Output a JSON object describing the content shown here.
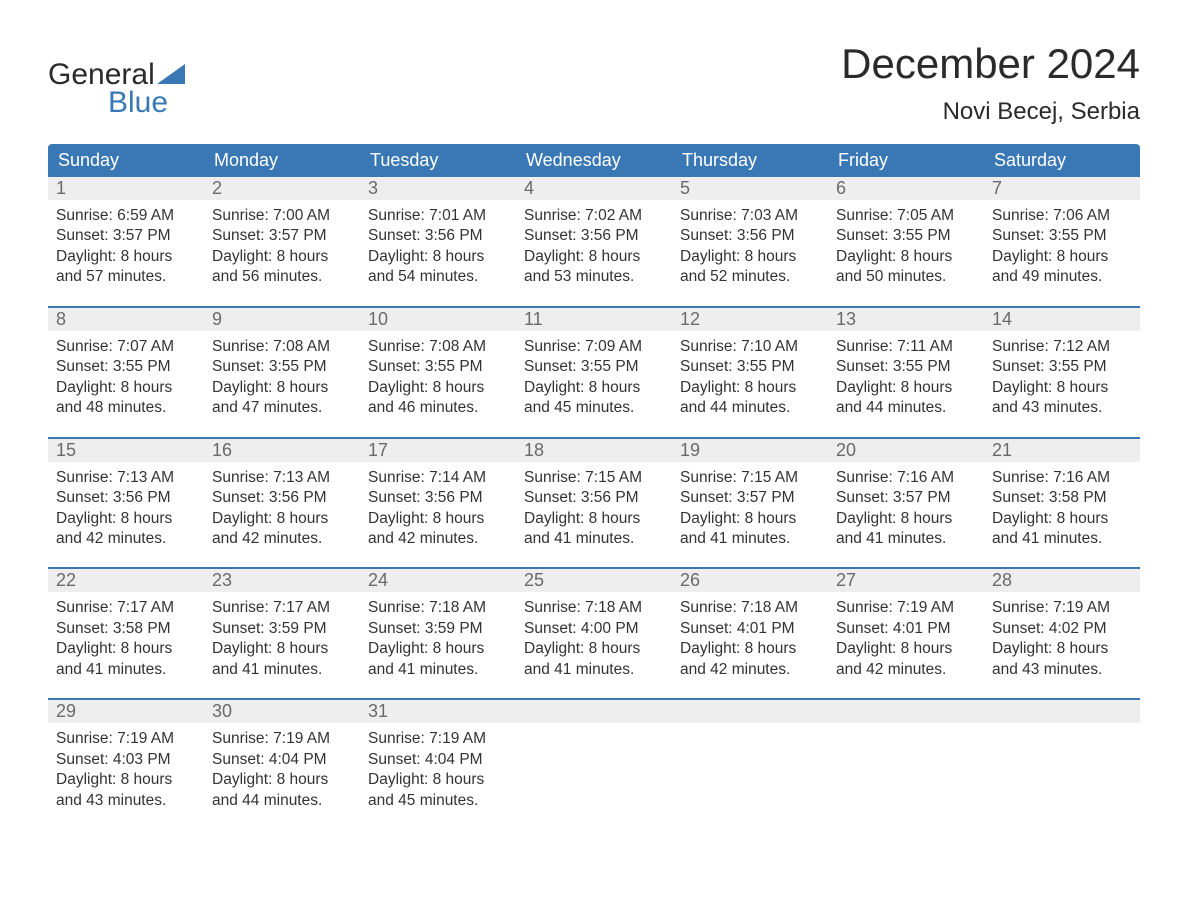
{
  "brand": {
    "word1": "General",
    "word2": "Blue"
  },
  "colors": {
    "blue": "#3a78b5",
    "header_text": "#ffffff",
    "daynum_bg": "#eeeeee",
    "daynum_text": "#6a6a6a",
    "body_text": "#333333",
    "page_bg": "#ffffff"
  },
  "title": "December 2024",
  "location": "Novi Becej, Serbia",
  "weekday_labels": [
    "Sunday",
    "Monday",
    "Tuesday",
    "Wednesday",
    "Thursday",
    "Friday",
    "Saturday"
  ],
  "labels": {
    "sunrise": "Sunrise:",
    "sunset": "Sunset:",
    "daylight": "Daylight:"
  },
  "weeks": [
    [
      {
        "n": "1",
        "sr": "6:59 AM",
        "ss": "3:57 PM",
        "dl": "8 hours and 57 minutes."
      },
      {
        "n": "2",
        "sr": "7:00 AM",
        "ss": "3:57 PM",
        "dl": "8 hours and 56 minutes."
      },
      {
        "n": "3",
        "sr": "7:01 AM",
        "ss": "3:56 PM",
        "dl": "8 hours and 54 minutes."
      },
      {
        "n": "4",
        "sr": "7:02 AM",
        "ss": "3:56 PM",
        "dl": "8 hours and 53 minutes."
      },
      {
        "n": "5",
        "sr": "7:03 AM",
        "ss": "3:56 PM",
        "dl": "8 hours and 52 minutes."
      },
      {
        "n": "6",
        "sr": "7:05 AM",
        "ss": "3:55 PM",
        "dl": "8 hours and 50 minutes."
      },
      {
        "n": "7",
        "sr": "7:06 AM",
        "ss": "3:55 PM",
        "dl": "8 hours and 49 minutes."
      }
    ],
    [
      {
        "n": "8",
        "sr": "7:07 AM",
        "ss": "3:55 PM",
        "dl": "8 hours and 48 minutes."
      },
      {
        "n": "9",
        "sr": "7:08 AM",
        "ss": "3:55 PM",
        "dl": "8 hours and 47 minutes."
      },
      {
        "n": "10",
        "sr": "7:08 AM",
        "ss": "3:55 PM",
        "dl": "8 hours and 46 minutes."
      },
      {
        "n": "11",
        "sr": "7:09 AM",
        "ss": "3:55 PM",
        "dl": "8 hours and 45 minutes."
      },
      {
        "n": "12",
        "sr": "7:10 AM",
        "ss": "3:55 PM",
        "dl": "8 hours and 44 minutes."
      },
      {
        "n": "13",
        "sr": "7:11 AM",
        "ss": "3:55 PM",
        "dl": "8 hours and 44 minutes."
      },
      {
        "n": "14",
        "sr": "7:12 AM",
        "ss": "3:55 PM",
        "dl": "8 hours and 43 minutes."
      }
    ],
    [
      {
        "n": "15",
        "sr": "7:13 AM",
        "ss": "3:56 PM",
        "dl": "8 hours and 42 minutes."
      },
      {
        "n": "16",
        "sr": "7:13 AM",
        "ss": "3:56 PM",
        "dl": "8 hours and 42 minutes."
      },
      {
        "n": "17",
        "sr": "7:14 AM",
        "ss": "3:56 PM",
        "dl": "8 hours and 42 minutes."
      },
      {
        "n": "18",
        "sr": "7:15 AM",
        "ss": "3:56 PM",
        "dl": "8 hours and 41 minutes."
      },
      {
        "n": "19",
        "sr": "7:15 AM",
        "ss": "3:57 PM",
        "dl": "8 hours and 41 minutes."
      },
      {
        "n": "20",
        "sr": "7:16 AM",
        "ss": "3:57 PM",
        "dl": "8 hours and 41 minutes."
      },
      {
        "n": "21",
        "sr": "7:16 AM",
        "ss": "3:58 PM",
        "dl": "8 hours and 41 minutes."
      }
    ],
    [
      {
        "n": "22",
        "sr": "7:17 AM",
        "ss": "3:58 PM",
        "dl": "8 hours and 41 minutes."
      },
      {
        "n": "23",
        "sr": "7:17 AM",
        "ss": "3:59 PM",
        "dl": "8 hours and 41 minutes."
      },
      {
        "n": "24",
        "sr": "7:18 AM",
        "ss": "3:59 PM",
        "dl": "8 hours and 41 minutes."
      },
      {
        "n": "25",
        "sr": "7:18 AM",
        "ss": "4:00 PM",
        "dl": "8 hours and 41 minutes."
      },
      {
        "n": "26",
        "sr": "7:18 AM",
        "ss": "4:01 PM",
        "dl": "8 hours and 42 minutes."
      },
      {
        "n": "27",
        "sr": "7:19 AM",
        "ss": "4:01 PM",
        "dl": "8 hours and 42 minutes."
      },
      {
        "n": "28",
        "sr": "7:19 AM",
        "ss": "4:02 PM",
        "dl": "8 hours and 43 minutes."
      }
    ],
    [
      {
        "n": "29",
        "sr": "7:19 AM",
        "ss": "4:03 PM",
        "dl": "8 hours and 43 minutes."
      },
      {
        "n": "30",
        "sr": "7:19 AM",
        "ss": "4:04 PM",
        "dl": "8 hours and 44 minutes."
      },
      {
        "n": "31",
        "sr": "7:19 AM",
        "ss": "4:04 PM",
        "dl": "8 hours and 45 minutes."
      },
      null,
      null,
      null,
      null
    ]
  ]
}
